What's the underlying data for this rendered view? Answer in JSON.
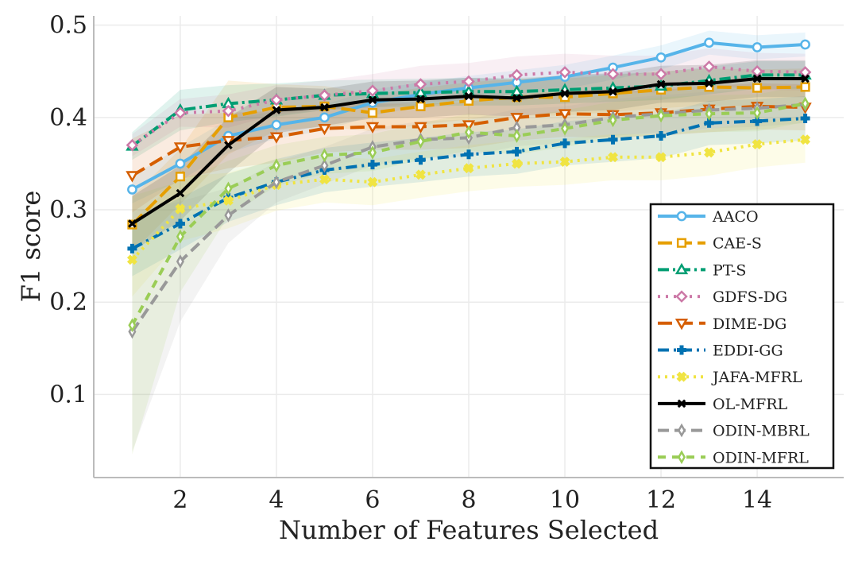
{
  "chart_data": {
    "type": "line",
    "title": "",
    "xlabel": "Number of Features Selected",
    "ylabel": "F1 score",
    "xlim": [
      0.2,
      15.8
    ],
    "ylim": [
      0.01,
      0.51
    ],
    "xticks": [
      2,
      4,
      6,
      8,
      10,
      12,
      14
    ],
    "yticks": [
      0.1,
      0.2,
      0.3,
      0.4,
      0.5
    ],
    "grid": true,
    "legend_position": "lower-right",
    "x": [
      1,
      2,
      3,
      4,
      5,
      6,
      7,
      8,
      9,
      10,
      11,
      12,
      13,
      14,
      15
    ],
    "series": [
      {
        "name": "AACO",
        "color": "#56B4E9",
        "dash": "",
        "marker": "circle",
        "values": [
          0.322,
          0.35,
          0.38,
          0.392,
          0.4,
          0.416,
          0.425,
          0.432,
          0.438,
          0.444,
          0.454,
          0.465,
          0.481,
          0.476,
          0.479
        ],
        "band": [
          0.015,
          0.018,
          0.018,
          0.015,
          0.014,
          0.014,
          0.013,
          0.013,
          0.013,
          0.013,
          0.013,
          0.013,
          0.013,
          0.013,
          0.013
        ]
      },
      {
        "name": "CAE-S",
        "color": "#E69F00",
        "dash": "18,7",
        "marker": "square",
        "values": [
          0.284,
          0.336,
          0.4,
          0.411,
          0.412,
          0.405,
          0.412,
          0.418,
          0.422,
          0.422,
          0.426,
          0.43,
          0.433,
          0.432,
          0.433
        ],
        "band": [
          0.03,
          0.03,
          0.04,
          0.025,
          0.022,
          0.02,
          0.02,
          0.02,
          0.02,
          0.02,
          0.02,
          0.02,
          0.02,
          0.02,
          0.02
        ]
      },
      {
        "name": "PT-S",
        "color": "#009E73",
        "dash": "14,5,3,5",
        "marker": "triangle",
        "values": [
          0.369,
          0.408,
          0.415,
          0.419,
          0.424,
          0.426,
          0.427,
          0.428,
          0.428,
          0.43,
          0.432,
          0.434,
          0.44,
          0.446,
          0.446
        ],
        "band": [
          0.015,
          0.022,
          0.02,
          0.018,
          0.016,
          0.015,
          0.015,
          0.015,
          0.015,
          0.015,
          0.015,
          0.015,
          0.015,
          0.015,
          0.015
        ]
      },
      {
        "name": "GDFS-DG",
        "color": "#CC79A7",
        "dash": "3,7",
        "marker": "diamond",
        "values": [
          0.37,
          0.405,
          0.407,
          0.419,
          0.424,
          0.429,
          0.436,
          0.439,
          0.446,
          0.449,
          0.447,
          0.447,
          0.455,
          0.45,
          0.449
        ],
        "band": [
          0.012,
          0.015,
          0.018,
          0.016,
          0.016,
          0.018,
          0.02,
          0.02,
          0.02,
          0.02,
          0.02,
          0.02,
          0.02,
          0.02,
          0.02
        ]
      },
      {
        "name": "DIME-DG",
        "color": "#D55E00",
        "dash": "18,8",
        "marker": "triangle-down",
        "values": [
          0.337,
          0.368,
          0.375,
          0.379,
          0.388,
          0.39,
          0.39,
          0.392,
          0.4,
          0.404,
          0.403,
          0.405,
          0.409,
          0.412,
          0.411
        ],
        "band": [
          0.04,
          0.035,
          0.03,
          0.028,
          0.026,
          0.025,
          0.025,
          0.025,
          0.025,
          0.025,
          0.025,
          0.025,
          0.025,
          0.025,
          0.025
        ]
      },
      {
        "name": "EDDI-GG",
        "color": "#0072B2",
        "dash": "14,6,3,6",
        "marker": "plus",
        "values": [
          0.258,
          0.285,
          0.313,
          0.33,
          0.343,
          0.349,
          0.354,
          0.36,
          0.363,
          0.372,
          0.376,
          0.38,
          0.394,
          0.396,
          0.399
        ],
        "band": [
          0.03,
          0.028,
          0.026,
          0.025,
          0.024,
          0.024,
          0.024,
          0.024,
          0.024,
          0.024,
          0.024,
          0.024,
          0.024,
          0.024,
          0.024
        ]
      },
      {
        "name": "JAFA-MFRL",
        "color": "#F0E442",
        "dash": "3,6",
        "marker": "x-filled",
        "values": [
          0.246,
          0.301,
          0.31,
          0.327,
          0.333,
          0.33,
          0.338,
          0.345,
          0.35,
          0.352,
          0.357,
          0.357,
          0.362,
          0.371,
          0.376
        ],
        "band": [
          0.04,
          0.035,
          0.03,
          0.028,
          0.025,
          0.025,
          0.025,
          0.025,
          0.025,
          0.025,
          0.025,
          0.025,
          0.025,
          0.025,
          0.025
        ]
      },
      {
        "name": "OL-MFRL",
        "color": "#000000",
        "dash": "",
        "marker": "x",
        "values": [
          0.285,
          0.318,
          0.37,
          0.408,
          0.411,
          0.419,
          0.42,
          0.423,
          0.421,
          0.426,
          0.428,
          0.436,
          0.437,
          0.442,
          0.442
        ],
        "band": [
          0.03,
          0.03,
          0.03,
          0.025,
          0.02,
          0.02,
          0.02,
          0.02,
          0.02,
          0.02,
          0.02,
          0.02,
          0.02,
          0.02,
          0.02
        ]
      },
      {
        "name": "ODIN-MBRL",
        "color": "#999999",
        "dash": "14,7",
        "marker": "thin-diamond",
        "values": [
          0.168,
          0.244,
          0.294,
          0.33,
          0.348,
          0.368,
          0.376,
          0.378,
          0.389,
          0.392,
          0.4,
          0.404,
          0.408,
          0.41,
          0.414
        ],
        "band": [
          0.13,
          0.065,
          0.03,
          0.022,
          0.02,
          0.02,
          0.02,
          0.02,
          0.02,
          0.02,
          0.02,
          0.02,
          0.02,
          0.02,
          0.02
        ]
      },
      {
        "name": "ODIN-MFRL",
        "color": "#9ACD56",
        "dash": "10,8",
        "marker": "thin-diamond",
        "values": [
          0.175,
          0.271,
          0.323,
          0.348,
          0.359,
          0.362,
          0.374,
          0.384,
          0.38,
          0.388,
          0.397,
          0.402,
          0.404,
          0.405,
          0.415
        ],
        "band": [
          0.14,
          0.06,
          0.03,
          0.022,
          0.02,
          0.02,
          0.02,
          0.02,
          0.02,
          0.02,
          0.02,
          0.02,
          0.02,
          0.02,
          0.02
        ]
      }
    ]
  }
}
